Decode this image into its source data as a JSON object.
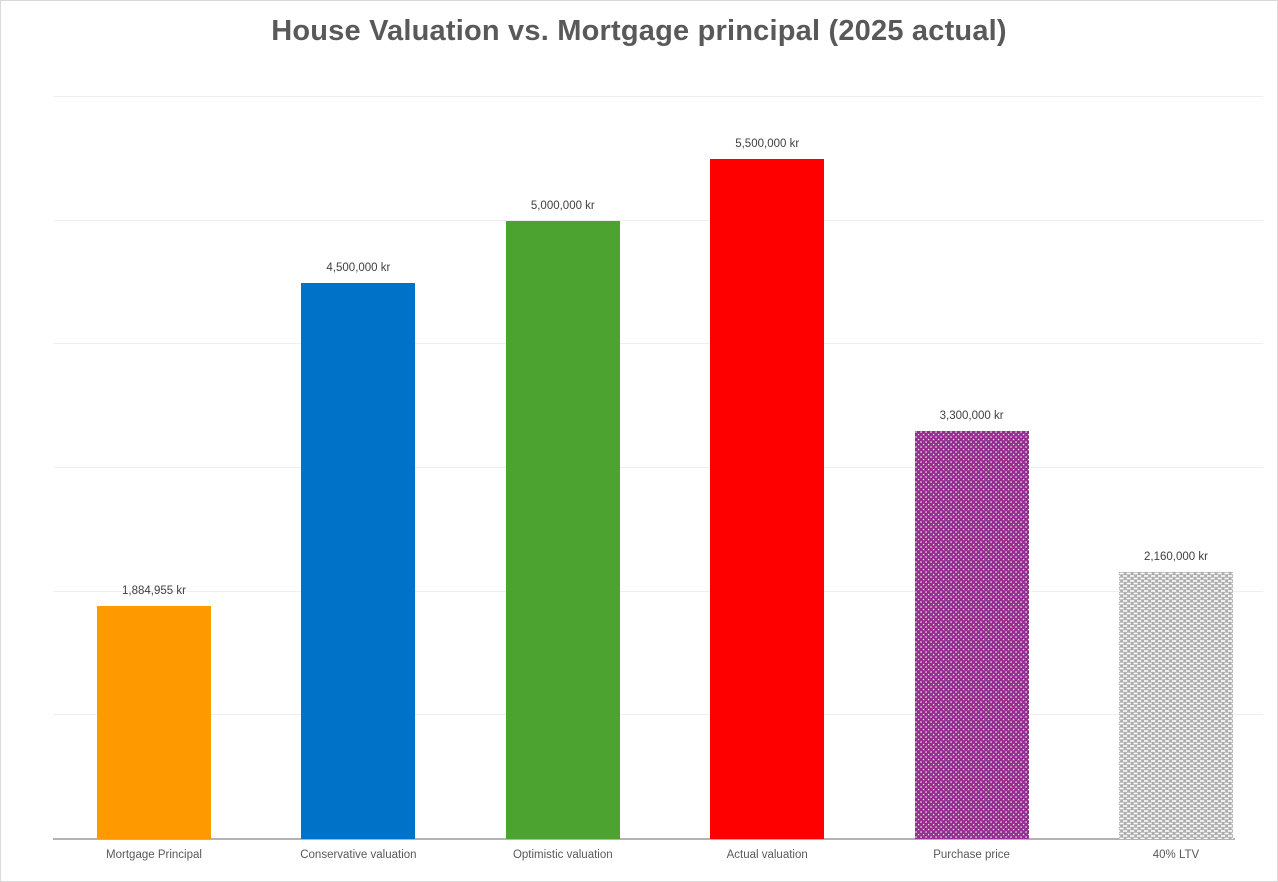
{
  "page": {
    "background": "#FFFFFF",
    "border_color": "#D9D9D9"
  },
  "chart_data": {
    "type": "bar",
    "title": "House Valuation vs. Mortgage principal (2025 actual)",
    "unit": "kr",
    "ylim": [
      0,
      6000000
    ],
    "gridline_interval": 1000000,
    "grid": true,
    "legend": "none",
    "y_tick_labels_visible": false,
    "categories": [
      "Mortgage Principal",
      "Conservative valuation",
      "Optimistic valuation",
      "Actual valuation",
      "Purchase price",
      "40% LTV"
    ],
    "values": [
      1884955,
      4500000,
      5000000,
      5500000,
      3300000,
      2160000
    ],
    "bars": [
      {
        "category": "Mortgage Principal",
        "value": 1884955,
        "label": "1,884,955 kr",
        "color": "#FF9900",
        "pattern": "solid"
      },
      {
        "category": "Conservative valuation",
        "value": 4500000,
        "label": "4,500,000 kr",
        "color": "#0072C7",
        "pattern": "solid"
      },
      {
        "category": "Optimistic valuation",
        "value": 5000000,
        "label": "5,000,000 kr",
        "color": "#4CA32F",
        "pattern": "solid"
      },
      {
        "category": "Actual valuation",
        "value": 5500000,
        "label": "5,500,000 kr",
        "color": "#FF0000",
        "pattern": "solid"
      },
      {
        "category": "Purchase price",
        "value": 3300000,
        "label": "3,300,000 kr",
        "color": "#952D91",
        "pattern": "dots",
        "pattern_color": "#FFFFFF"
      },
      {
        "category": "40% LTV",
        "value": 2160000,
        "label": "2,160,000 kr",
        "color": "#ACACAC",
        "pattern": "dashes",
        "pattern_color": "#FFFFFF"
      }
    ]
  },
  "style": {
    "title_color": "#595959",
    "value_label_color": "#404040",
    "category_label_color": "#595959",
    "gridline_color": "#EFEFEF",
    "axis_line_color": "#B3B3B3"
  }
}
